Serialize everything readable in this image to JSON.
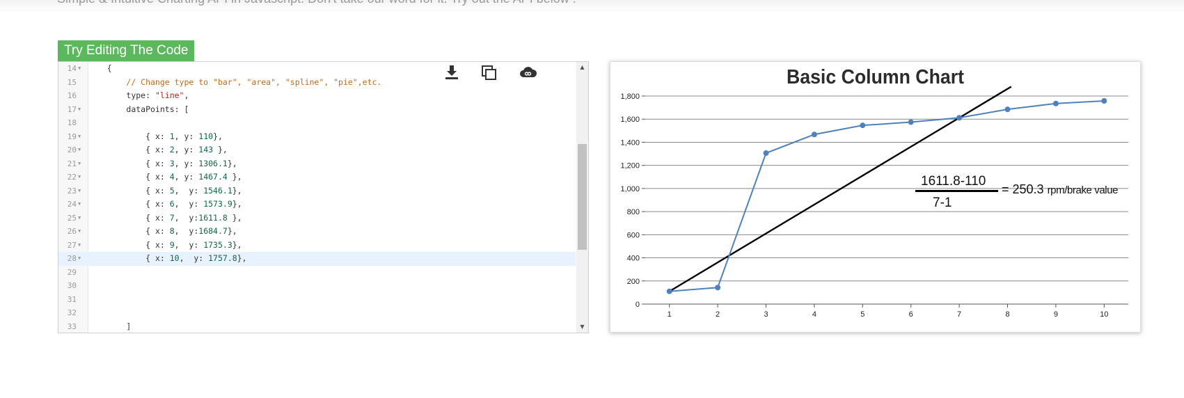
{
  "page": {
    "intro": "Simple & Intuitive Charting API in Javascript. Don't take our word for it. Try out the API below !"
  },
  "editor": {
    "tab_label": "Try Editing The Code",
    "icons": [
      "download-icon",
      "copy-icon",
      "cloud-icon"
    ],
    "lines": [
      {
        "n": "14",
        "fold": true,
        "indent": "    ",
        "tokens": [
          [
            "p",
            "{"
          ]
        ]
      },
      {
        "n": "15",
        "fold": false,
        "indent": "        ",
        "tokens": [
          [
            "c",
            "// Change type to \"bar\", \"area\", \"spline\", \"pie\",etc."
          ]
        ]
      },
      {
        "n": "16",
        "fold": false,
        "indent": "        ",
        "tokens": [
          [
            "p",
            "type: "
          ],
          [
            "s",
            "\"line\""
          ],
          [
            "p",
            ","
          ]
        ]
      },
      {
        "n": "17",
        "fold": true,
        "indent": "        ",
        "tokens": [
          [
            "p",
            "dataPoints: ["
          ]
        ]
      },
      {
        "n": "18",
        "fold": false,
        "indent": "",
        "tokens": []
      },
      {
        "n": "19",
        "fold": true,
        "indent": "            ",
        "tokens": [
          [
            "p",
            "{ x: "
          ],
          [
            "n",
            "1"
          ],
          [
            "p",
            ", y: "
          ],
          [
            "n",
            "110"
          ],
          [
            "p",
            "},"
          ]
        ]
      },
      {
        "n": "20",
        "fold": true,
        "indent": "            ",
        "tokens": [
          [
            "p",
            "{ x: "
          ],
          [
            "n",
            "2"
          ],
          [
            "p",
            ", y: "
          ],
          [
            "n",
            "143"
          ],
          [
            "p",
            " },"
          ]
        ]
      },
      {
        "n": "21",
        "fold": true,
        "indent": "            ",
        "tokens": [
          [
            "p",
            "{ x: "
          ],
          [
            "n",
            "3"
          ],
          [
            "p",
            ", y: "
          ],
          [
            "n",
            "1306.1"
          ],
          [
            "p",
            "},"
          ]
        ]
      },
      {
        "n": "22",
        "fold": true,
        "indent": "            ",
        "tokens": [
          [
            "p",
            "{ x: "
          ],
          [
            "n",
            "4"
          ],
          [
            "p",
            ", y: "
          ],
          [
            "n",
            "1467.4"
          ],
          [
            "p",
            " },"
          ]
        ]
      },
      {
        "n": "23",
        "fold": true,
        "indent": "            ",
        "tokens": [
          [
            "p",
            "{ x: "
          ],
          [
            "n",
            "5"
          ],
          [
            "p",
            ",  y: "
          ],
          [
            "n",
            "1546.1"
          ],
          [
            "p",
            "},"
          ]
        ]
      },
      {
        "n": "24",
        "fold": true,
        "indent": "            ",
        "tokens": [
          [
            "p",
            "{ x: "
          ],
          [
            "n",
            "6"
          ],
          [
            "p",
            ",  y: "
          ],
          [
            "n",
            "1573.9"
          ],
          [
            "p",
            "},"
          ]
        ]
      },
      {
        "n": "25",
        "fold": true,
        "indent": "            ",
        "tokens": [
          [
            "p",
            "{ x: "
          ],
          [
            "n",
            "7"
          ],
          [
            "p",
            ",  y:"
          ],
          [
            "n",
            "1611.8"
          ],
          [
            "p",
            " },"
          ]
        ]
      },
      {
        "n": "26",
        "fold": true,
        "indent": "            ",
        "tokens": [
          [
            "p",
            "{ x: "
          ],
          [
            "n",
            "8"
          ],
          [
            "p",
            ",  y:"
          ],
          [
            "n",
            "1684.7"
          ],
          [
            "p",
            "},"
          ]
        ]
      },
      {
        "n": "27",
        "fold": true,
        "indent": "            ",
        "tokens": [
          [
            "p",
            "{ x: "
          ],
          [
            "n",
            "9"
          ],
          [
            "p",
            ",  y: "
          ],
          [
            "n",
            "1735.3"
          ],
          [
            "p",
            "},"
          ]
        ]
      },
      {
        "n": "28",
        "fold": true,
        "indent": "            ",
        "tokens": [
          [
            "p",
            "{ x: "
          ],
          [
            "n",
            "10"
          ],
          [
            "p",
            ",  y: "
          ],
          [
            "n",
            "1757.8"
          ],
          [
            "p",
            "},"
          ]
        ],
        "active": true
      },
      {
        "n": "29",
        "fold": false,
        "indent": "",
        "tokens": []
      },
      {
        "n": "30",
        "fold": false,
        "indent": "",
        "tokens": []
      },
      {
        "n": "31",
        "fold": false,
        "indent": "",
        "tokens": []
      },
      {
        "n": "32",
        "fold": false,
        "indent": "",
        "tokens": []
      },
      {
        "n": "33",
        "fold": false,
        "indent": "        ",
        "tokens": [
          [
            "p",
            "]"
          ]
        ]
      }
    ]
  },
  "chart_data": {
    "type": "line",
    "title": "Basic Column Chart",
    "xlabel": "",
    "ylabel": "",
    "x": [
      1,
      2,
      3,
      4,
      5,
      6,
      7,
      8,
      9,
      10
    ],
    "series": [
      {
        "values": [
          110,
          143,
          1306.1,
          1467.4,
          1546.1,
          1573.9,
          1611.8,
          1684.7,
          1735.3,
          1757.8
        ],
        "color": "#4f81bc"
      }
    ],
    "xticks": [
      "1",
      "2",
      "3",
      "4",
      "5",
      "6",
      "7",
      "8",
      "9",
      "10"
    ],
    "yticks": [
      "0",
      "200",
      "400",
      "600",
      "800",
      "1,000",
      "1,200",
      "1,400",
      "1,600",
      "1,800"
    ],
    "ytick_values": [
      0,
      200,
      400,
      600,
      800,
      1000,
      1200,
      1400,
      1600,
      1800
    ],
    "xlim": [
      0.5,
      10.5
    ],
    "ylim": [
      0,
      1800
    ],
    "grid": true,
    "annotation": {
      "line_from": [
        1,
        110
      ],
      "line_through": [
        7,
        1611.8
      ],
      "line_color": "#000000",
      "numerator": "1611.8-110",
      "denominator": "7-1",
      "result": "= 250.3",
      "unit": "rpm/brake value"
    }
  }
}
